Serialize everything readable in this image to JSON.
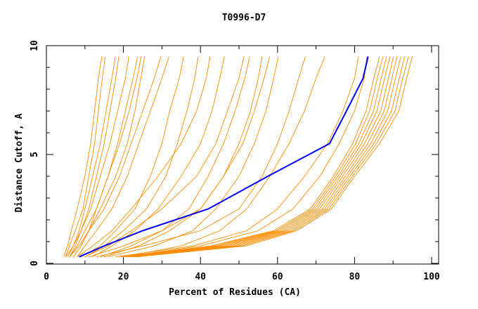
{
  "chart_data": {
    "type": "line",
    "title": "T0996-D7",
    "xlabel": "Percent of Residues (CA)",
    "ylabel": "Distance Cutoff, A",
    "xlim": [
      0,
      102
    ],
    "ylim": [
      0,
      10
    ],
    "x_ticks": [
      "0",
      "20",
      "40",
      "60",
      "80",
      "100"
    ],
    "y_ticks": [
      "0",
      "5",
      "10"
    ],
    "grid": false,
    "legend": "none",
    "colors": {
      "highlight": "#0000ff",
      "others": "#ff8c00"
    },
    "cutoffs": [
      0.3,
      0.8,
      1.5,
      2.5,
      4,
      5.5,
      7,
      8.5,
      9.5
    ],
    "highlight_series": [
      8.5,
      15,
      25,
      42,
      57.5,
      73.5,
      77.9,
      82.2,
      83.5
    ],
    "series": [
      [
        4.5,
        5.5,
        6.5,
        8,
        10,
        11.5,
        12.5,
        13.5,
        14.4
      ],
      [
        5,
        6,
        7.5,
        9.5,
        11,
        12.5,
        13.5,
        14.5,
        15.3
      ],
      [
        5,
        7,
        8.5,
        10,
        12,
        14,
        15.5,
        17,
        17.9
      ],
      [
        6,
        7.5,
        9,
        11,
        13,
        15,
        16.5,
        18,
        18.8
      ],
      [
        5.5,
        7,
        9,
        11.5,
        14,
        16.5,
        18.5,
        20.5,
        21.4
      ],
      [
        7,
        9,
        11,
        13,
        16,
        18.5,
        20.5,
        22.5,
        23.7
      ],
      [
        6,
        8,
        10,
        13,
        16,
        19,
        21.5,
        23.5,
        24.6
      ],
      [
        7,
        9,
        11,
        14,
        18,
        21,
        23,
        24.5,
        25.5
      ],
      [
        6,
        8.5,
        11,
        15,
        19,
        22,
        25,
        28,
        29.7
      ],
      [
        8,
        10,
        13,
        17,
        21,
        24,
        27,
        30,
        31.8
      ],
      [
        9,
        14,
        18,
        23,
        27,
        30,
        32,
        34.5,
        35.6
      ],
      [
        10,
        15,
        20,
        26,
        31,
        34,
        36.5,
        38.5,
        39.4
      ],
      [
        8,
        12,
        17,
        22,
        29,
        35,
        39,
        41.5,
        42.5
      ],
      [
        12,
        17,
        23,
        29,
        35,
        40,
        43,
        45,
        46.2
      ],
      [
        10,
        16,
        22,
        30,
        39,
        44,
        47,
        50,
        51.3
      ],
      [
        14,
        22,
        30,
        37,
        42,
        46,
        49,
        51.5,
        52.8
      ],
      [
        15,
        24,
        32,
        40,
        46,
        50,
        53,
        55,
        56
      ],
      [
        11,
        20,
        30,
        40,
        46,
        51,
        54,
        56.5,
        58
      ],
      [
        16,
        28,
        38,
        44,
        50,
        54,
        57,
        59,
        60.2
      ],
      [
        13,
        25,
        40,
        50,
        56,
        60,
        63,
        65.5,
        67.2
      ],
      [
        20,
        35,
        45,
        52,
        58,
        63,
        67,
        70,
        72.3
      ],
      [
        18,
        38,
        52,
        60,
        67,
        73,
        77,
        80,
        81
      ],
      [
        20,
        40,
        55,
        64,
        71,
        76,
        80,
        82.5,
        83.2
      ],
      [
        19,
        42.7,
        59,
        68.5,
        74.5,
        79.5,
        83,
        85,
        86.5
      ],
      [
        19.5,
        43.7,
        59.7,
        69.1,
        75.1,
        80.3,
        83.9,
        85.9,
        87.4
      ],
      [
        20,
        44.7,
        60.3,
        69.7,
        75.7,
        81.1,
        84.9,
        86.9,
        88.3
      ],
      [
        20.5,
        45.7,
        61,
        70.3,
        76.3,
        81.8,
        85.8,
        87.8,
        89.2
      ],
      [
        21,
        46.7,
        61.7,
        70.9,
        76.9,
        82.6,
        86.8,
        88.8,
        90.1
      ],
      [
        21.5,
        47.7,
        62.3,
        71.6,
        77.6,
        83.4,
        87.7,
        89.7,
        91
      ],
      [
        22,
        48.8,
        63,
        72.2,
        78.2,
        84.2,
        88.6,
        90.6,
        92
      ],
      [
        22.5,
        49.8,
        63.7,
        72.8,
        78.8,
        85,
        89.6,
        91.6,
        93
      ],
      [
        23,
        50.8,
        64.3,
        73.4,
        79.4,
        85.7,
        90.5,
        92.5,
        94
      ],
      [
        23.5,
        51.8,
        65,
        74,
        80,
        86.5,
        91.5,
        93.5,
        95
      ]
    ]
  }
}
